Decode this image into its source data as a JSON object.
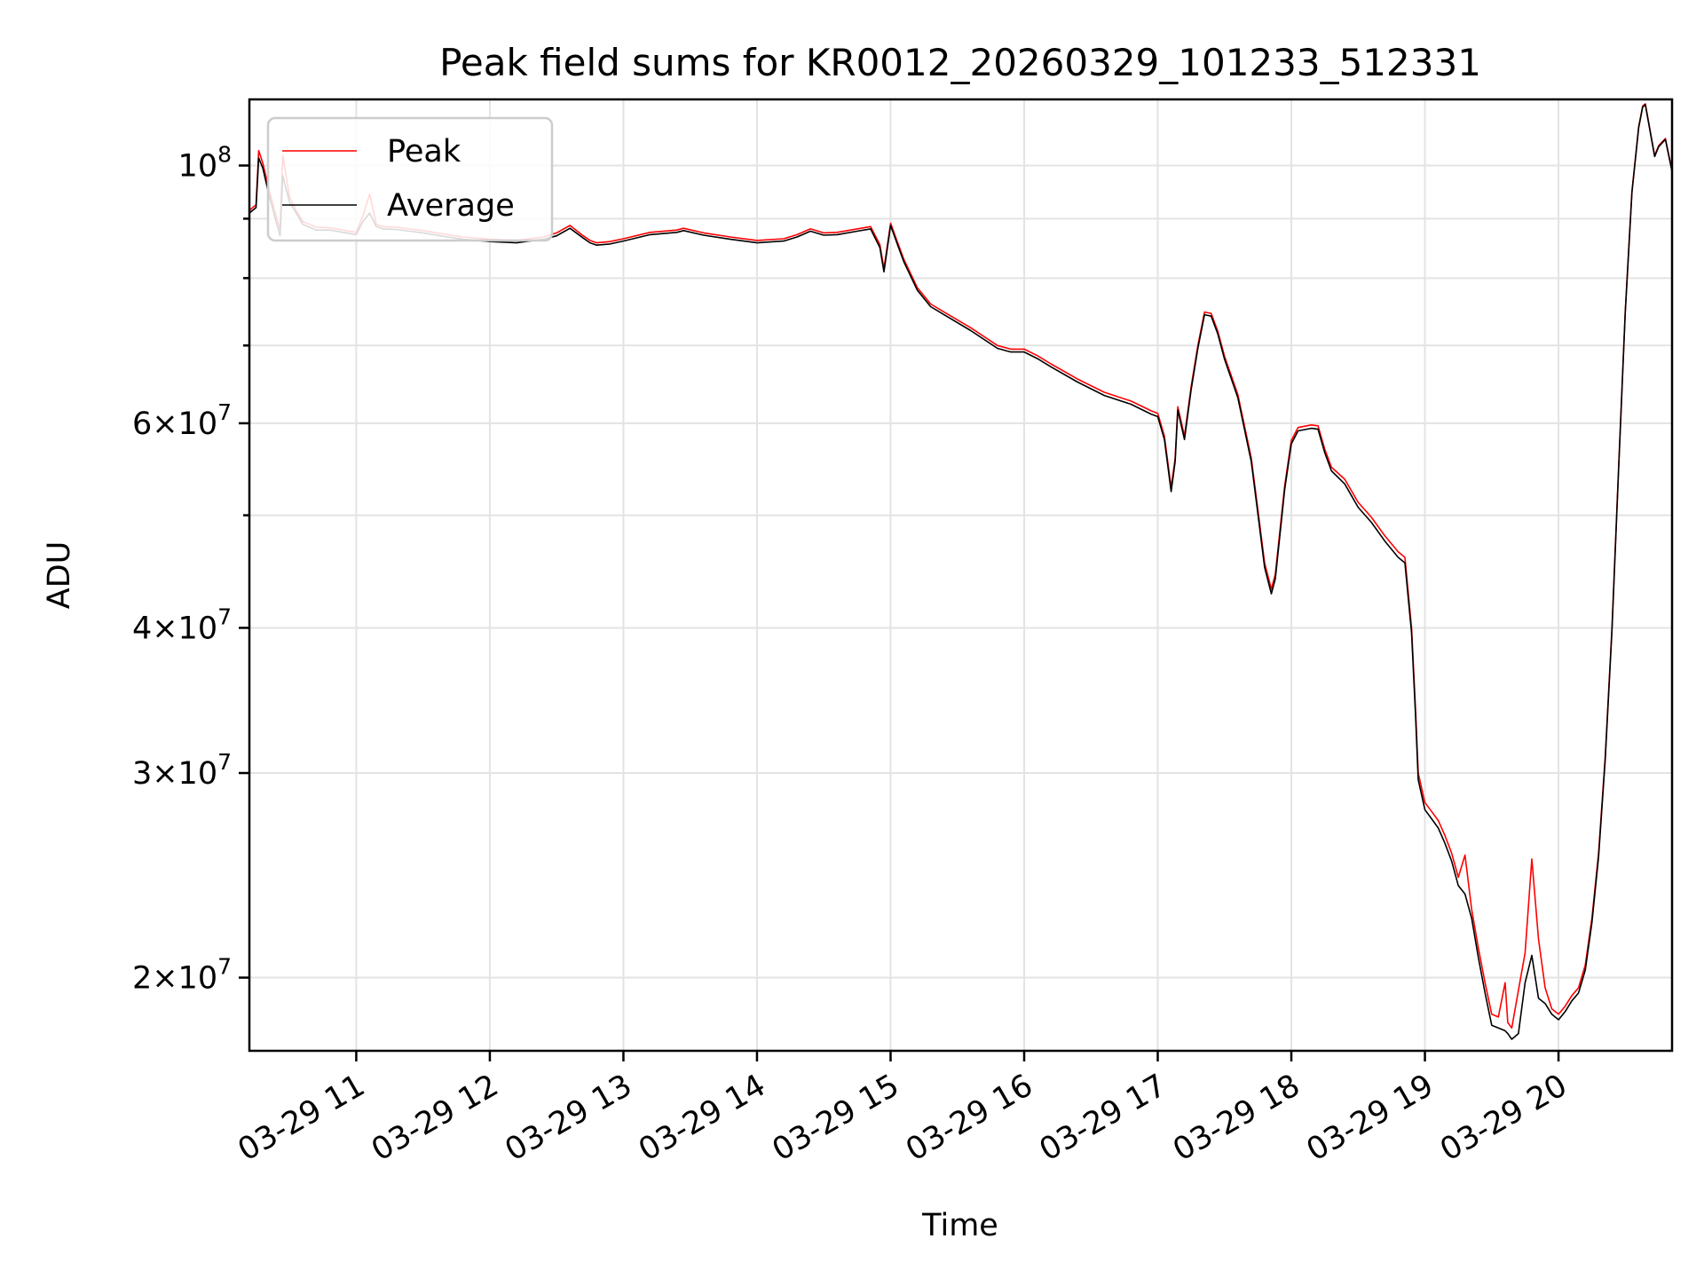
{
  "chart_data": {
    "type": "line",
    "title": "Peak field sums for KR0012_20260329_101233_512331",
    "xlabel": "Time",
    "ylabel": "ADU",
    "yscale": "log",
    "grid": true,
    "legend_position": "upper-left",
    "colors": {
      "peak": "#ff0000",
      "average": "#000000",
      "grid": "#e3e3e3"
    },
    "xlim_hours": [
      10.2,
      20.85
    ],
    "ylim": [
      17300000,
      114000000
    ],
    "x_ticks": [
      {
        "hour": 11,
        "label": "03-29 11"
      },
      {
        "hour": 12,
        "label": "03-29 12"
      },
      {
        "hour": 13,
        "label": "03-29 13"
      },
      {
        "hour": 14,
        "label": "03-29 14"
      },
      {
        "hour": 15,
        "label": "03-29 15"
      },
      {
        "hour": 16,
        "label": "03-29 16"
      },
      {
        "hour": 17,
        "label": "03-29 17"
      },
      {
        "hour": 18,
        "label": "03-29 18"
      },
      {
        "hour": 19,
        "label": "03-29 19"
      },
      {
        "hour": 20,
        "label": "03-29 20"
      }
    ],
    "y_ticks": [
      {
        "value": 20000000,
        "mantissa": "2",
        "exponent": "7"
      },
      {
        "value": 30000000,
        "mantissa": "3",
        "exponent": "7"
      },
      {
        "value": 40000000,
        "mantissa": "4",
        "exponent": "7"
      },
      {
        "value": 60000000,
        "mantissa": "6",
        "exponent": "7"
      },
      {
        "value": 100000000,
        "mantissa": "",
        "exponent": "8"
      }
    ],
    "y_minor_ticks": [
      50000000,
      70000000,
      80000000,
      90000000
    ],
    "series": [
      {
        "name": "Peak",
        "color": "#ff0000",
        "x": [
          10.2,
          10.25,
          10.27,
          10.3,
          10.35,
          10.4,
          10.43,
          10.45,
          10.5,
          10.55,
          10.6,
          10.7,
          10.8,
          10.9,
          11.0,
          11.05,
          11.1,
          11.15,
          11.2,
          11.3,
          11.4,
          11.5,
          11.6,
          11.8,
          12.0,
          12.2,
          12.4,
          12.5,
          12.6,
          12.7,
          12.75,
          12.8,
          12.9,
          13.0,
          13.2,
          13.4,
          13.45,
          13.6,
          13.8,
          14.0,
          14.2,
          14.3,
          14.4,
          14.5,
          14.6,
          14.75,
          14.85,
          14.92,
          14.95,
          15.0,
          15.05,
          15.1,
          15.2,
          15.3,
          15.4,
          15.6,
          15.8,
          15.9,
          16.0,
          16.1,
          16.2,
          16.4,
          16.6,
          16.8,
          16.95,
          17.0,
          17.05,
          17.1,
          17.13,
          17.15,
          17.2,
          17.25,
          17.3,
          17.35,
          17.4,
          17.45,
          17.5,
          17.6,
          17.7,
          17.75,
          17.8,
          17.85,
          17.88,
          17.95,
          18.0,
          18.05,
          18.15,
          18.2,
          18.25,
          18.3,
          18.4,
          18.5,
          18.6,
          18.7,
          18.8,
          18.85,
          18.9,
          18.93,
          18.95,
          19.0,
          19.05,
          19.1,
          19.15,
          19.2,
          19.25,
          19.3,
          19.35,
          19.4,
          19.45,
          19.5,
          19.55,
          19.6,
          19.62,
          19.65,
          19.7,
          19.75,
          19.8,
          19.85,
          19.9,
          19.95,
          20.0,
          20.05,
          20.1,
          20.15,
          20.2,
          20.25,
          20.3,
          20.35,
          20.4,
          20.45,
          20.5,
          20.55,
          20.6,
          20.63,
          20.65,
          20.7,
          20.72,
          20.75,
          20.8,
          20.85
        ],
        "values": [
          91500000,
          92500000,
          103000000,
          100500000,
          95000000,
          90500000,
          88000000,
          102000000,
          94000000,
          91500000,
          89500000,
          88500000,
          88400000,
          88000000,
          87600000,
          90500000,
          94500000,
          89000000,
          88600000,
          88500000,
          88200000,
          87900000,
          87500000,
          86800000,
          86400000,
          86200000,
          86800000,
          87500000,
          88800000,
          87000000,
          86200000,
          85800000,
          86000000,
          86500000,
          87600000,
          88000000,
          88300000,
          87500000,
          86800000,
          86200000,
          86500000,
          87200000,
          88200000,
          87500000,
          87600000,
          88200000,
          88600000,
          85500000,
          81500000,
          89200000,
          86000000,
          83000000,
          78500000,
          76000000,
          74800000,
          72500000,
          70000000,
          69500000,
          69500000,
          68600000,
          67500000,
          65500000,
          63800000,
          62700000,
          61500000,
          61200000,
          58500000,
          52800000,
          56000000,
          62000000,
          58500000,
          64500000,
          70000000,
          74800000,
          74600000,
          72000000,
          68500000,
          63500000,
          56000000,
          50500000,
          45500000,
          43200000,
          44500000,
          53000000,
          58000000,
          59500000,
          59800000,
          59700000,
          57000000,
          55000000,
          53700000,
          51300000,
          49800000,
          48000000,
          46500000,
          46000000,
          40000000,
          34000000,
          30000000,
          28300000,
          27800000,
          27300000,
          26500000,
          25600000,
          24400000,
          25500000,
          22900000,
          21200000,
          19800000,
          18600000,
          18500000,
          19800000,
          18300000,
          18100000,
          19500000,
          21000000,
          25300000,
          21600000,
          19600000,
          18800000,
          18600000,
          18900000,
          19300000,
          19600000,
          20500000,
          22500000,
          25600000,
          31000000,
          40000000,
          55000000,
          75000000,
          95000000,
          108000000,
          112500000,
          113000000,
          105000000,
          102000000,
          104000000,
          105500000,
          99000000
        ]
      },
      {
        "name": "Average",
        "color": "#000000",
        "x": [
          10.2,
          10.25,
          10.27,
          10.3,
          10.35,
          10.4,
          10.43,
          10.45,
          10.5,
          10.55,
          10.6,
          10.7,
          10.8,
          10.9,
          11.0,
          11.05,
          11.1,
          11.15,
          11.2,
          11.3,
          11.4,
          11.5,
          11.6,
          11.8,
          12.0,
          12.2,
          12.4,
          12.5,
          12.6,
          12.7,
          12.75,
          12.8,
          12.9,
          13.0,
          13.2,
          13.4,
          13.45,
          13.6,
          13.8,
          14.0,
          14.2,
          14.3,
          14.4,
          14.5,
          14.6,
          14.75,
          14.85,
          14.92,
          14.95,
          15.0,
          15.05,
          15.1,
          15.2,
          15.3,
          15.4,
          15.6,
          15.8,
          15.9,
          16.0,
          16.1,
          16.2,
          16.4,
          16.6,
          16.8,
          16.95,
          17.0,
          17.05,
          17.1,
          17.13,
          17.15,
          17.2,
          17.25,
          17.3,
          17.35,
          17.4,
          17.45,
          17.5,
          17.6,
          17.7,
          17.75,
          17.8,
          17.85,
          17.88,
          17.95,
          18.0,
          18.05,
          18.15,
          18.2,
          18.25,
          18.3,
          18.4,
          18.5,
          18.6,
          18.7,
          18.8,
          18.85,
          18.9,
          18.93,
          18.95,
          19.0,
          19.05,
          19.1,
          19.15,
          19.2,
          19.25,
          19.3,
          19.35,
          19.4,
          19.45,
          19.5,
          19.55,
          19.6,
          19.62,
          19.65,
          19.7,
          19.75,
          19.8,
          19.85,
          19.9,
          19.95,
          20.0,
          20.05,
          20.1,
          20.15,
          20.2,
          20.25,
          20.3,
          20.35,
          20.4,
          20.45,
          20.5,
          20.55,
          20.6,
          20.63,
          20.65,
          20.7,
          20.72,
          20.75,
          20.8,
          20.85
        ],
        "values": [
          91000000,
          92000000,
          101500000,
          99500000,
          94000000,
          89500000,
          87000000,
          98000000,
          93000000,
          91000000,
          89000000,
          88000000,
          88000000,
          87600000,
          87200000,
          89500000,
          91000000,
          88600000,
          88200000,
          88100000,
          87800000,
          87500000,
          87100000,
          86400000,
          86000000,
          85800000,
          86400000,
          87000000,
          88300000,
          86600000,
          85800000,
          85400000,
          85600000,
          86100000,
          87200000,
          87600000,
          87900000,
          87100000,
          86400000,
          85800000,
          86100000,
          86800000,
          87800000,
          87100000,
          87200000,
          87800000,
          88200000,
          85000000,
          81000000,
          88800000,
          85600000,
          82600000,
          78100000,
          75600000,
          74400000,
          72100000,
          69600000,
          69100000,
          69100000,
          68200000,
          67100000,
          65100000,
          63400000,
          62300000,
          61100000,
          60800000,
          58100000,
          52400000,
          55600000,
          61600000,
          58100000,
          64100000,
          69600000,
          74400000,
          74200000,
          71600000,
          68100000,
          63100000,
          55600000,
          50100000,
          45100000,
          42800000,
          44100000,
          52600000,
          57600000,
          59100000,
          59400000,
          59300000,
          56600000,
          54600000,
          53200000,
          50800000,
          49300000,
          47500000,
          46000000,
          45500000,
          39600000,
          33600000,
          29600000,
          27900000,
          27400000,
          26900000,
          26100000,
          25200000,
          24000000,
          23600000,
          22500000,
          20800000,
          19400000,
          18200000,
          18100000,
          18000000,
          17900000,
          17700000,
          17900000,
          19800000,
          20900000,
          19200000,
          19000000,
          18600000,
          18400000,
          18700000,
          19100000,
          19400000,
          20300000,
          22300000,
          25400000,
          30800000,
          39800000,
          54800000,
          74800000,
          94800000,
          107800000,
          112300000,
          112800000,
          104800000,
          101800000,
          103800000,
          105300000,
          98800000
        ]
      }
    ]
  }
}
